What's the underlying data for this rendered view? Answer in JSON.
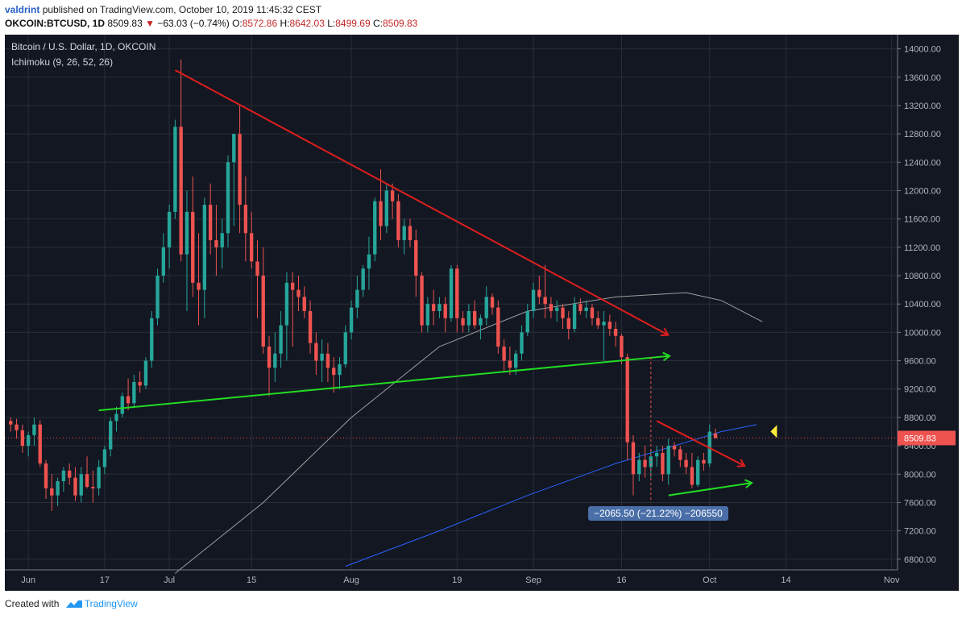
{
  "header": {
    "username": "valdrint",
    "published_text": "published on TradingView.com, October 10, 2019 11:45:32 CEST"
  },
  "ohlc": {
    "symbol": "OKCOIN:BTCUSD, 1D",
    "last": "8509.83",
    "change": "−63.03 (−0.74%)",
    "o_label": "O:",
    "o": "8572.86",
    "h_label": "H:",
    "h": "8642.03",
    "l_label": "L:",
    "l": "8499.69",
    "c_label": "C:",
    "c": "8509.83"
  },
  "legend": {
    "title": "Bitcoin / U.S. Dollar, 1D, OKCOIN",
    "indicator": "Ichimoku (9, 26, 52, 26)"
  },
  "annotation": "−2065.50 (−21.22%) −206550",
  "price_tag": "8509.83",
  "footer": {
    "created_with": "Created with",
    "brand": "TradingView"
  },
  "colors": {
    "background": "#131722",
    "up": "#26a69a",
    "down": "#ef5350",
    "grid": "#2a2e39",
    "resistance": "#e01e1e",
    "support": "#22dd22",
    "ma_gray": "#9e9e9e",
    "ma_blue": "#2962ff"
  },
  "chart_data": {
    "type": "candlestick",
    "ylim": [
      6650,
      14200
    ],
    "y_ticks": [
      "14000.00",
      "13600.00",
      "13200.00",
      "12800.00",
      "12400.00",
      "12000.00",
      "11600.00",
      "11200.00",
      "10800.00",
      "10400.00",
      "10000.00",
      "9600.00",
      "9200.00",
      "8800.00",
      "8400.00",
      "8000.00",
      "7600.00",
      "7200.00",
      "6800.00"
    ],
    "x_ticks": [
      {
        "label": "Jun",
        "day": 0
      },
      {
        "label": "17",
        "day": 13
      },
      {
        "label": "Jul",
        "day": 24
      },
      {
        "label": "15",
        "day": 38
      },
      {
        "label": "Aug",
        "day": 55
      },
      {
        "label": "19",
        "day": 73
      },
      {
        "label": "Sep",
        "day": 86
      },
      {
        "label": "16",
        "day": 101
      },
      {
        "label": "Oct",
        "day": 116
      },
      {
        "label": "14",
        "day": 129
      },
      {
        "label": "Nov",
        "day": 147
      }
    ],
    "x_range_days": [
      -4,
      148
    ],
    "candles": [
      [
        8750,
        8800,
        8600,
        8700
      ],
      [
        8700,
        8780,
        8500,
        8620
      ],
      [
        8620,
        8700,
        8300,
        8400
      ],
      [
        8400,
        8600,
        8250,
        8550
      ],
      [
        8550,
        8800,
        8400,
        8700
      ],
      [
        8700,
        8760,
        8100,
        8150
      ],
      [
        8150,
        8200,
        7650,
        7800
      ],
      [
        7800,
        8000,
        7480,
        7700
      ],
      [
        7700,
        7950,
        7550,
        7900
      ],
      [
        7900,
        8100,
        7750,
        8050
      ],
      [
        8050,
        8150,
        7850,
        7950
      ],
      [
        7950,
        8100,
        7620,
        7700
      ],
      [
        7700,
        8100,
        7600,
        8000
      ],
      [
        8000,
        8250,
        7800,
        7820
      ],
      [
        7820,
        8050,
        7600,
        7800
      ],
      [
        7800,
        8200,
        7700,
        8100
      ],
      [
        8100,
        8400,
        8000,
        8350
      ],
      [
        8350,
        8800,
        8250,
        8750
      ],
      [
        8750,
        8950,
        8600,
        8850
      ],
      [
        8850,
        9150,
        8800,
        9100
      ],
      [
        9100,
        9350,
        8900,
        9000
      ],
      [
        9000,
        9400,
        8950,
        9300
      ],
      [
        9300,
        9450,
        9150,
        9250
      ],
      [
        9250,
        9650,
        9200,
        9600
      ],
      [
        9600,
        10300,
        9500,
        10200
      ],
      [
        10200,
        10900,
        10100,
        10800
      ],
      [
        10800,
        11400,
        10700,
        11200
      ],
      [
        11200,
        11800,
        10900,
        11700
      ],
      [
        11700,
        13000,
        11600,
        12900
      ],
      [
        12900,
        13850,
        11000,
        11100
      ],
      [
        11100,
        12000,
        10300,
        11700
      ],
      [
        11700,
        12200,
        10500,
        10700
      ],
      [
        10700,
        11400,
        10100,
        10600
      ],
      [
        10600,
        11900,
        10200,
        11800
      ],
      [
        11800,
        12100,
        11100,
        11300
      ],
      [
        11300,
        11800,
        10800,
        11200
      ],
      [
        11200,
        11600,
        10900,
        11400
      ],
      [
        11400,
        12500,
        11200,
        12400
      ],
      [
        12400,
        12750,
        11500,
        12800
      ],
      [
        12800,
        13200,
        11400,
        11800
      ],
      [
        11800,
        12200,
        11000,
        11400
      ],
      [
        11400,
        11700,
        10900,
        11000
      ],
      [
        11000,
        11300,
        10200,
        10800
      ],
      [
        10800,
        11200,
        9700,
        9800
      ],
      [
        9800,
        9950,
        9100,
        9500
      ],
      [
        9500,
        10000,
        9300,
        9700
      ],
      [
        9700,
        10300,
        9500,
        10100
      ],
      [
        10100,
        10850,
        9600,
        10700
      ],
      [
        10700,
        10850,
        9800,
        10600
      ],
      [
        10600,
        10800,
        10300,
        10500
      ],
      [
        10500,
        10650,
        10200,
        10300
      ],
      [
        10300,
        10450,
        9700,
        9850
      ],
      [
        9850,
        10000,
        9400,
        9600
      ],
      [
        9600,
        9900,
        9300,
        9700
      ],
      [
        9700,
        9850,
        9300,
        9500
      ],
      [
        9500,
        9650,
        9150,
        9400
      ],
      [
        9400,
        9650,
        9200,
        9550
      ],
      [
        9550,
        10100,
        9500,
        10000
      ],
      [
        10000,
        10450,
        9900,
        10350
      ],
      [
        10350,
        10800,
        10200,
        10600
      ],
      [
        10600,
        10950,
        10500,
        10900
      ],
      [
        10900,
        11350,
        10600,
        11100
      ],
      [
        11100,
        11900,
        11000,
        11850
      ],
      [
        11850,
        12300,
        11300,
        11500
      ],
      [
        11500,
        12100,
        11400,
        12000
      ],
      [
        12000,
        12100,
        11600,
        11850
      ],
      [
        11850,
        11950,
        11200,
        11300
      ],
      [
        11300,
        11600,
        11100,
        11500
      ],
      [
        11500,
        11600,
        11200,
        11300
      ],
      [
        11300,
        11450,
        10500,
        10800
      ],
      [
        10800,
        10850,
        10000,
        10100
      ],
      [
        10100,
        10500,
        10000,
        10400
      ],
      [
        10400,
        10600,
        10100,
        10300
      ],
      [
        10300,
        10500,
        10200,
        10400
      ],
      [
        10400,
        10500,
        10000,
        10200
      ],
      [
        10200,
        10950,
        10150,
        10900
      ],
      [
        10900,
        10950,
        10000,
        10200
      ],
      [
        10200,
        10300,
        10000,
        10100
      ],
      [
        10100,
        10400,
        10000,
        10300
      ],
      [
        10300,
        10450,
        10050,
        10100
      ],
      [
        10100,
        10250,
        9900,
        10200
      ],
      [
        10200,
        10650,
        10100,
        10500
      ],
      [
        10500,
        10550,
        10250,
        10350
      ],
      [
        10350,
        10450,
        9700,
        9800
      ],
      [
        9800,
        9900,
        9450,
        9600
      ],
      [
        9600,
        9800,
        9400,
        9500
      ],
      [
        9500,
        9750,
        9400,
        9700
      ],
      [
        9700,
        10100,
        9600,
        10000
      ],
      [
        10000,
        10400,
        9950,
        10300
      ],
      [
        10300,
        10700,
        10200,
        10600
      ],
      [
        10600,
        10800,
        10400,
        10500
      ],
      [
        10500,
        10950,
        10200,
        10400
      ],
      [
        10400,
        10500,
        10200,
        10300
      ],
      [
        10300,
        10450,
        10150,
        10350
      ],
      [
        10350,
        10400,
        10050,
        10200
      ],
      [
        10200,
        10300,
        9900,
        10050
      ],
      [
        10050,
        10500,
        10000,
        10400
      ],
      [
        10400,
        10480,
        10250,
        10300
      ],
      [
        10300,
        10450,
        10200,
        10350
      ],
      [
        10350,
        10400,
        10100,
        10200
      ],
      [
        10200,
        10300,
        10050,
        10100
      ],
      [
        10100,
        10300,
        9600,
        10150
      ],
      [
        10150,
        10250,
        9950,
        10050
      ],
      [
        10050,
        10150,
        9800,
        9950
      ],
      [
        9950,
        9980,
        9550,
        9650
      ],
      [
        9650,
        9700,
        8200,
        8450
      ],
      [
        8450,
        8550,
        7700,
        8000
      ],
      [
        8000,
        8300,
        7900,
        8200
      ],
      [
        8200,
        8400,
        7950,
        8100
      ],
      [
        8100,
        8350,
        7950,
        8250
      ],
      [
        8250,
        8400,
        8100,
        8300
      ],
      [
        8300,
        8400,
        7900,
        8000
      ],
      [
        8000,
        8500,
        7850,
        8400
      ],
      [
        8400,
        8450,
        8250,
        8350
      ],
      [
        8350,
        8400,
        8100,
        8200
      ],
      [
        8200,
        8300,
        8000,
        8100
      ],
      [
        8100,
        8300,
        7800,
        7850
      ],
      [
        7850,
        8250,
        7820,
        8200
      ],
      [
        8200,
        8300,
        8050,
        8150
      ],
      [
        8150,
        8700,
        8100,
        8600
      ],
      [
        8572.86,
        8642.03,
        8499.69,
        8509.83
      ]
    ],
    "start_day": -3,
    "ma_gray": [
      [
        25,
        6600
      ],
      [
        40,
        7600
      ],
      [
        55,
        8800
      ],
      [
        70,
        9800
      ],
      [
        85,
        10300
      ],
      [
        100,
        10500
      ],
      [
        112,
        10560
      ],
      [
        118,
        10450
      ],
      [
        125,
        10150
      ]
    ],
    "ma_blue": [
      [
        54,
        6700
      ],
      [
        70,
        7200
      ],
      [
        85,
        7700
      ],
      [
        100,
        8150
      ],
      [
        112,
        8450
      ],
      [
        118,
        8600
      ],
      [
        124,
        8700
      ]
    ],
    "trend_lines": [
      {
        "color": "resistance",
        "points": [
          [
            25,
            13700
          ],
          [
            107,
            10050
          ]
        ],
        "arrow": true
      },
      {
        "color": "support",
        "points": [
          [
            12,
            8900
          ],
          [
            107,
            9650
          ]
        ],
        "arrow": true
      },
      {
        "color": "resistance",
        "points": [
          [
            107,
            8750
          ],
          [
            120,
            8200
          ]
        ],
        "arrow": true
      },
      {
        "color": "support",
        "points": [
          [
            109,
            7700
          ],
          [
            121,
            7850
          ]
        ],
        "arrow": true
      }
    ],
    "last_price": 8509.83,
    "last_price_label": "8509.83"
  }
}
